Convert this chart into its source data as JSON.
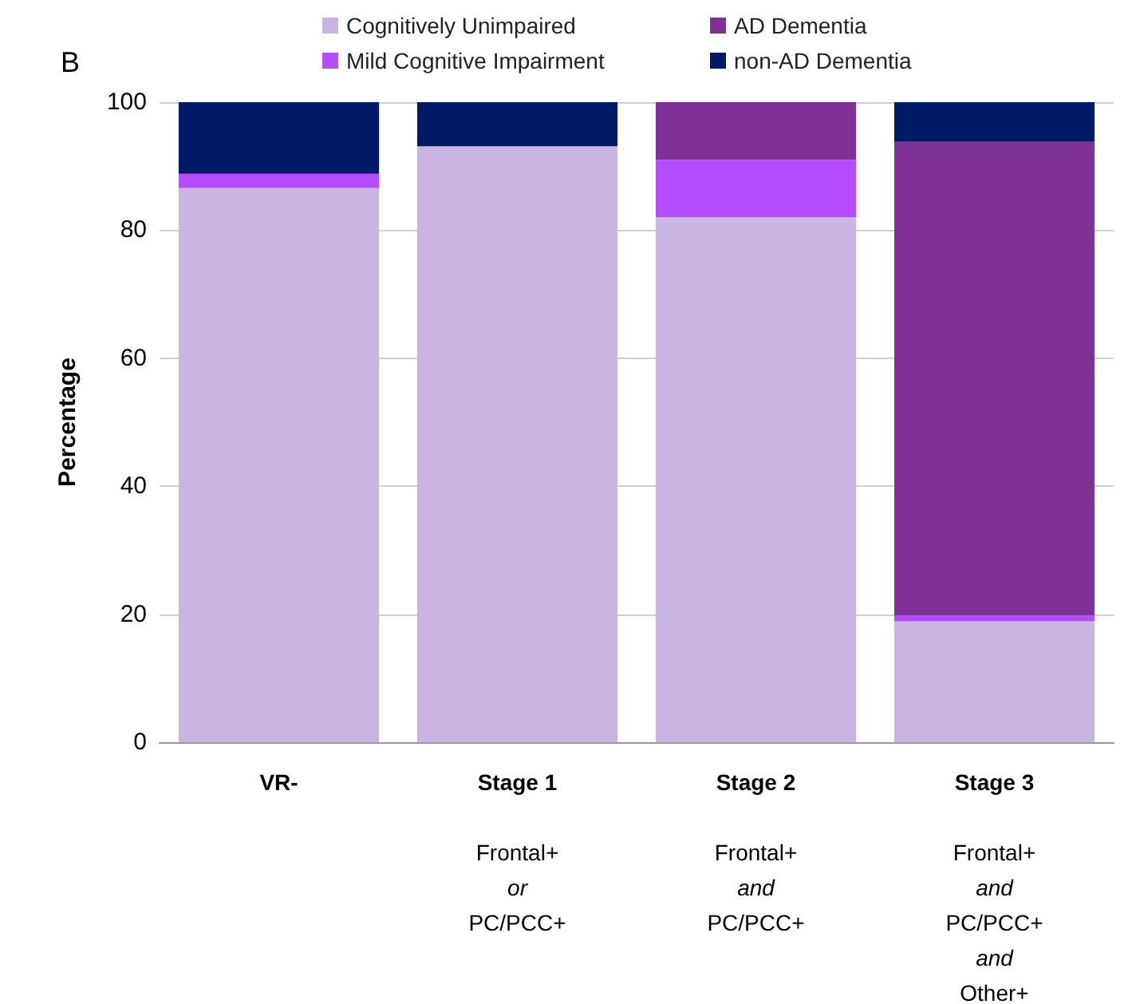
{
  "chart_data": {
    "type": "bar",
    "stacked": true,
    "ylabel": "Percentage",
    "annotations": [
      "B"
    ],
    "categories": [
      "VR-",
      "Stage 1\n\nFrontal+\nor\nPC/PCC+",
      "Stage 2\n\nFrontal+\nand\nPC/PCC+",
      "Stage 3\n\nFrontal+\nand\nPC/PCC+\nand\nOther+"
    ],
    "series": [
      {
        "name": "Cognitively Unimpaired",
        "color": "#cab4e4",
        "values": [
          86.6,
          93.1,
          82.0,
          18.9
        ]
      },
      {
        "name": "Mild Cognitive Impairment",
        "color": "#b44cff",
        "values": [
          2.2,
          null,
          9.0,
          0.9
        ]
      },
      {
        "name": "AD Dementia",
        "color": "#7f3296",
        "values": [
          null,
          null,
          9.0,
          74.0
        ]
      },
      {
        "name": "non-AD Dementia",
        "color": "#001a66",
        "values": [
          11.2,
          6.9,
          null,
          6.2
        ]
      }
    ],
    "ylim": [
      0,
      100
    ],
    "yticks": [
      0,
      20,
      40,
      60,
      80,
      100
    ],
    "grid": "y",
    "legend": "top"
  }
}
